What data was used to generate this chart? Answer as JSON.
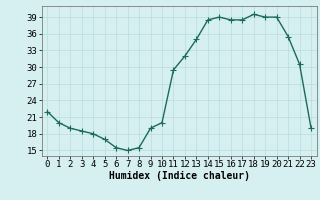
{
  "x": [
    0,
    1,
    2,
    3,
    4,
    5,
    6,
    7,
    8,
    9,
    10,
    11,
    12,
    13,
    14,
    15,
    16,
    17,
    18,
    19,
    20,
    21,
    22,
    23
  ],
  "y": [
    22,
    20,
    19,
    18.5,
    18,
    17,
    15.5,
    15,
    15.5,
    19,
    20,
    29.5,
    32,
    35,
    38.5,
    39,
    38.5,
    38.5,
    39.5,
    39,
    39,
    35.5,
    30.5,
    19
  ],
  "line_color": "#1a6b5a",
  "marker": "+",
  "marker_size": 4,
  "bg_color": "#d6eff0",
  "grid_color": "#b8dce0",
  "xlabel": "Humidex (Indice chaleur)",
  "xlim": [
    -0.5,
    23.5
  ],
  "ylim": [
    14,
    41
  ],
  "yticks": [
    15,
    18,
    21,
    24,
    27,
    30,
    33,
    36,
    39
  ],
  "xticks": [
    0,
    1,
    2,
    3,
    4,
    5,
    6,
    7,
    8,
    9,
    10,
    11,
    12,
    13,
    14,
    15,
    16,
    17,
    18,
    19,
    20,
    21,
    22,
    23
  ],
  "xlabel_fontsize": 7,
  "tick_fontsize": 6.5,
  "linewidth": 1.0
}
